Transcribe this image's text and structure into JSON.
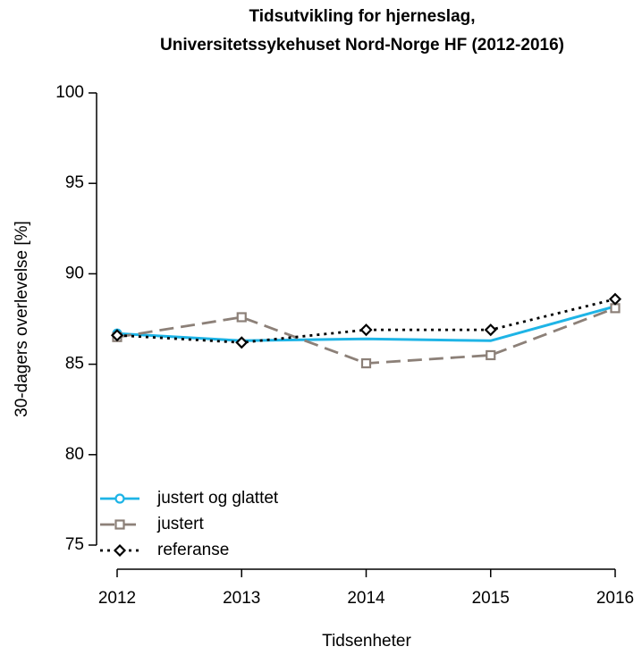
{
  "chart_data": {
    "type": "line",
    "title": [
      "Tidsutvikling for hjerneslag,",
      "Universitetssykehuset Nord-Norge HF (2012-2016)"
    ],
    "xlabel": "Tidsenheter",
    "ylabel": "30-dagers overlevelse [%]",
    "x": [
      2012,
      2013,
      2014,
      2015,
      2016
    ],
    "series": [
      {
        "name": "justert og glattet",
        "color": "#1eb4e6",
        "dash": "solid",
        "marker": "circle",
        "values": [
          86.7,
          86.3,
          86.4,
          86.3,
          88.2
        ]
      },
      {
        "name": "justert",
        "color": "#8c8078",
        "dash": "dashed",
        "marker": "square",
        "values": [
          86.5,
          87.6,
          85.05,
          85.5,
          88.1
        ]
      },
      {
        "name": "referanse",
        "color": "#000000",
        "dash": "dotted",
        "marker": "diamond",
        "values": [
          86.6,
          86.2,
          86.9,
          86.9,
          88.6
        ]
      }
    ],
    "xlim": [
      2012,
      2016
    ],
    "xticks": [
      2012,
      2013,
      2014,
      2015,
      2016
    ],
    "ylim": [
      75,
      100
    ],
    "yticks": [
      75,
      80,
      85,
      90,
      95,
      100
    ],
    "legend": "bottom-left"
  }
}
